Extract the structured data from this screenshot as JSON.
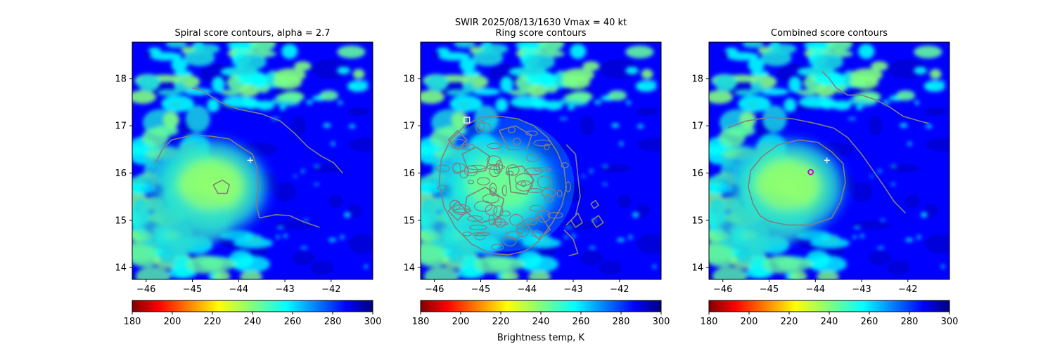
{
  "suptitle_line1": "SWIR  2025/08/13/1630    Vmax = 40 kt",
  "colorbar_label": "Brightness temp, K",
  "chart_data": {
    "type": "heatmap",
    "panel_titles": [
      "Spiral score contours, alpha =  2.7",
      "Ring score contours",
      "Combined score contours"
    ],
    "xlim": [
      -46.3,
      -41.1
    ],
    "ylim": [
      13.75,
      18.77
    ],
    "x_ticks": [
      -46,
      -45,
      -44,
      -43,
      -42
    ],
    "x_tick_labels": [
      "−46",
      "−45",
      "−44",
      "−43",
      "−42"
    ],
    "y_ticks": [
      14,
      15,
      16,
      17,
      18
    ],
    "y_tick_labels": [
      "14",
      "15",
      "16",
      "17",
      "18"
    ],
    "colorbar": {
      "colormap": "jet_r",
      "range": [
        180,
        300
      ],
      "ticks": [
        180,
        200,
        220,
        240,
        260,
        280,
        300
      ],
      "tick_labels": [
        "180",
        "200",
        "220",
        "240",
        "260",
        "280",
        "300"
      ]
    },
    "markers": {
      "plus_center": [
        -43.75,
        16.27
      ],
      "ring_square": [
        -45.3,
        17.12
      ],
      "combined_circle": [
        -44.1,
        16.02
      ]
    },
    "contour_color": "#808080",
    "spiral_contours": [
      [
        [
          -45.8,
          16.2
        ],
        [
          -45.65,
          16.5
        ],
        [
          -45.45,
          16.7
        ],
        [
          -45.0,
          16.8
        ],
        [
          -44.6,
          16.78
        ],
        [
          -44.2,
          16.72
        ],
        [
          -43.9,
          16.52
        ],
        [
          -43.7,
          16.4
        ],
        [
          -43.6,
          16.1
        ],
        [
          -43.58,
          15.7
        ],
        [
          -43.62,
          15.35
        ],
        [
          -43.55,
          15.05
        ],
        [
          -43.2,
          15.12
        ],
        [
          -42.9,
          15.1
        ],
        [
          -42.6,
          14.97
        ],
        [
          -42.25,
          14.85
        ]
      ],
      [
        [
          -44.55,
          15.75
        ],
        [
          -44.35,
          15.85
        ],
        [
          -44.2,
          15.75
        ],
        [
          -44.25,
          15.57
        ],
        [
          -44.45,
          15.57
        ],
        [
          -44.55,
          15.75
        ]
      ],
      [
        [
          -45.0,
          17.8
        ],
        [
          -44.8,
          17.75
        ],
        [
          -44.4,
          17.5
        ],
        [
          -44.0,
          17.35
        ],
        [
          -43.5,
          17.25
        ],
        [
          -43.1,
          17.1
        ],
        [
          -42.8,
          16.85
        ],
        [
          -42.5,
          16.55
        ],
        [
          -42.2,
          16.35
        ],
        [
          -41.95,
          16.22
        ],
        [
          -41.75,
          16.0
        ]
      ]
    ],
    "ring_contours": [
      [
        [
          -45.65,
          16.7
        ],
        [
          -45.35,
          17.0
        ],
        [
          -45.0,
          17.18
        ],
        [
          -44.6,
          17.2
        ],
        [
          -44.2,
          17.15
        ],
        [
          -43.85,
          17.0
        ],
        [
          -43.55,
          16.75
        ],
        [
          -43.35,
          16.45
        ],
        [
          -43.2,
          16.1
        ],
        [
          -43.15,
          15.7
        ],
        [
          -43.25,
          15.3
        ],
        [
          -43.45,
          14.95
        ],
        [
          -43.75,
          14.55
        ],
        [
          -44.05,
          14.35
        ],
        [
          -44.4,
          14.27
        ],
        [
          -44.8,
          14.3
        ],
        [
          -45.2,
          14.5
        ],
        [
          -45.55,
          14.85
        ],
        [
          -45.8,
          15.3
        ],
        [
          -45.9,
          15.8
        ],
        [
          -45.85,
          16.3
        ],
        [
          -45.65,
          16.7
        ]
      ],
      [
        [
          -43.15,
          16.6
        ],
        [
          -42.95,
          16.4
        ],
        [
          -42.9,
          15.95
        ],
        [
          -42.85,
          15.5
        ],
        [
          -42.95,
          15.1
        ],
        [
          -43.15,
          14.9
        ]
      ],
      [
        [
          -43.2,
          14.8
        ],
        [
          -43.0,
          14.6
        ],
        [
          -42.9,
          14.3
        ],
        [
          -43.1,
          14.25
        ]
      ],
      [
        [
          -45.4,
          16.4
        ],
        [
          -45.1,
          16.55
        ],
        [
          -44.8,
          16.35
        ],
        [
          -44.9,
          16.05
        ],
        [
          -45.25,
          16.0
        ],
        [
          -45.4,
          16.4
        ]
      ],
      [
        [
          -44.4,
          16.1
        ],
        [
          -44.1,
          16.15
        ],
        [
          -43.85,
          15.85
        ],
        [
          -44.0,
          15.55
        ],
        [
          -44.35,
          15.6
        ],
        [
          -44.4,
          16.1
        ]
      ],
      [
        [
          -45.3,
          15.5
        ],
        [
          -44.9,
          15.7
        ],
        [
          -44.5,
          15.45
        ],
        [
          -44.6,
          15.05
        ],
        [
          -45.0,
          14.95
        ],
        [
          -45.35,
          15.2
        ],
        [
          -45.3,
          15.5
        ]
      ],
      [
        [
          -44.6,
          16.9
        ],
        [
          -44.25,
          17.0
        ],
        [
          -43.9,
          16.8
        ],
        [
          -44.0,
          16.5
        ],
        [
          -44.4,
          16.5
        ],
        [
          -44.6,
          16.9
        ]
      ],
      [
        [
          -44.0,
          14.9
        ],
        [
          -43.7,
          15.1
        ],
        [
          -43.5,
          14.8
        ],
        [
          -43.75,
          14.6
        ],
        [
          -44.0,
          14.9
        ]
      ],
      [
        [
          -45.7,
          15.2
        ],
        [
          -45.5,
          15.4
        ],
        [
          -45.3,
          15.2
        ],
        [
          -45.5,
          15.0
        ],
        [
          -45.7,
          15.2
        ]
      ],
      [
        [
          -45.7,
          16.7
        ],
        [
          -45.5,
          16.9
        ],
        [
          -45.3,
          16.7
        ],
        [
          -45.5,
          16.5
        ],
        [
          -45.7,
          16.7
        ]
      ],
      [
        [
          -42.6,
          15.0
        ],
        [
          -42.45,
          15.1
        ],
        [
          -42.35,
          14.95
        ],
        [
          -42.5,
          14.85
        ],
        [
          -42.6,
          15.0
        ]
      ],
      [
        [
          -43.05,
          15.0
        ],
        [
          -42.9,
          15.15
        ],
        [
          -42.8,
          14.95
        ],
        [
          -42.95,
          14.85
        ],
        [
          -43.05,
          15.0
        ]
      ],
      [
        [
          -42.62,
          15.35
        ],
        [
          -42.52,
          15.42
        ],
        [
          -42.45,
          15.32
        ],
        [
          -42.55,
          15.25
        ],
        [
          -42.62,
          15.35
        ]
      ]
    ],
    "combined_contours": [
      [
        [
          -45.2,
          15.1
        ],
        [
          -45.35,
          15.35
        ],
        [
          -45.45,
          15.7
        ],
        [
          -45.4,
          16.05
        ],
        [
          -45.15,
          16.35
        ],
        [
          -44.8,
          16.6
        ],
        [
          -44.35,
          16.7
        ],
        [
          -43.95,
          16.65
        ],
        [
          -43.65,
          16.45
        ],
        [
          -43.4,
          16.2
        ],
        [
          -43.35,
          15.8
        ],
        [
          -43.45,
          15.4
        ],
        [
          -43.65,
          15.05
        ],
        [
          -44.1,
          14.9
        ],
        [
          -44.6,
          14.9
        ],
        [
          -45.0,
          14.98
        ],
        [
          -45.2,
          15.1
        ]
      ],
      [
        [
          -45.9,
          16.95
        ],
        [
          -45.5,
          17.1
        ],
        [
          -45.0,
          17.18
        ],
        [
          -44.5,
          17.15
        ],
        [
          -44.0,
          17.05
        ],
        [
          -43.6,
          16.95
        ],
        [
          -43.3,
          16.75
        ],
        [
          -43.0,
          16.4
        ],
        [
          -42.75,
          16.05
        ],
        [
          -42.5,
          15.7
        ],
        [
          -42.3,
          15.4
        ],
        [
          -42.05,
          15.15
        ]
      ],
      [
        [
          -43.85,
          18.15
        ],
        [
          -43.7,
          18.0
        ],
        [
          -43.55,
          17.8
        ],
        [
          -43.3,
          17.65
        ],
        [
          -43.0,
          17.65
        ],
        [
          -42.7,
          17.55
        ],
        [
          -42.4,
          17.4
        ],
        [
          -42.1,
          17.2
        ],
        [
          -41.75,
          17.1
        ],
        [
          -41.55,
          17.05
        ]
      ]
    ]
  }
}
